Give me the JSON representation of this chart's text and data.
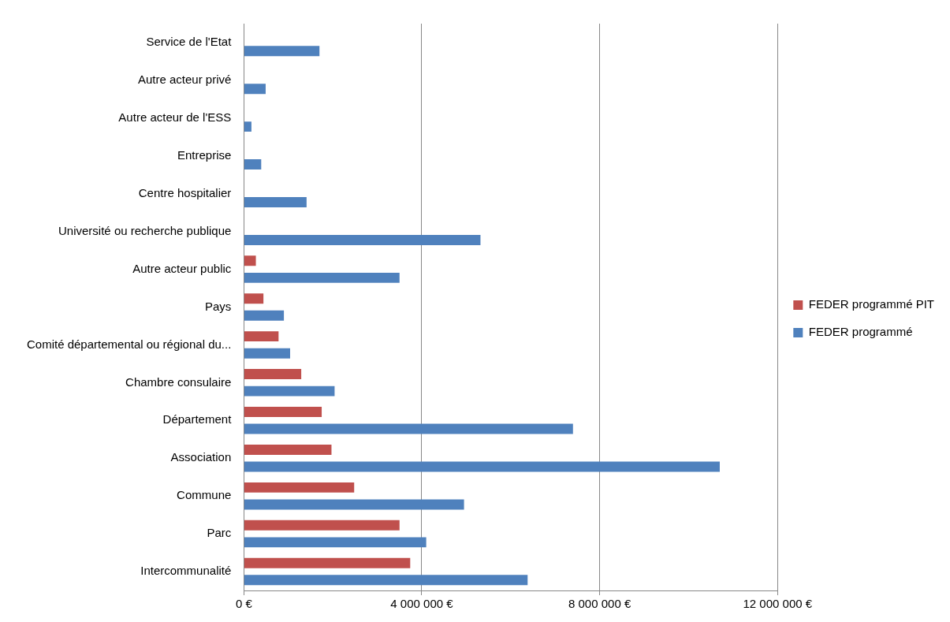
{
  "chart_data": {
    "type": "bar",
    "orientation": "horizontal",
    "categories": [
      "Service de l'Etat",
      "Autre acteur privé",
      "Autre acteur de l'ESS",
      "Entreprise",
      "Centre hospitalier",
      "Université ou recherche publique",
      "Autre acteur public",
      "Pays",
      "Comité départemental ou régional du...",
      "Chambre consulaire",
      "Département",
      "Association",
      "Commune",
      "Parc",
      "Intercommunalité"
    ],
    "series": [
      {
        "name": "FEDER programmé PIT",
        "color": "#c0504d",
        "values": [
          null,
          null,
          null,
          null,
          null,
          null,
          270000,
          440000,
          780000,
          1290000,
          1750000,
          1970000,
          2480000,
          3500000,
          3740000
        ]
      },
      {
        "name": "FEDER programmé",
        "color": "#4f81bd",
        "values": [
          1700000,
          490000,
          170000,
          390000,
          1410000,
          5320000,
          3500000,
          900000,
          1040000,
          2040000,
          7400000,
          10700000,
          4950000,
          4100000,
          6380000
        ]
      }
    ],
    "xlim": [
      0,
      12000000
    ],
    "xticks": [
      {
        "value": 0,
        "label": "0 €"
      },
      {
        "value": 4000000,
        "label": "4 000 000 €"
      },
      {
        "value": 8000000,
        "label": "8 000 000 €"
      },
      {
        "value": 12000000,
        "label": "12 000 000 €"
      }
    ],
    "grid": "x",
    "legend": "right"
  }
}
